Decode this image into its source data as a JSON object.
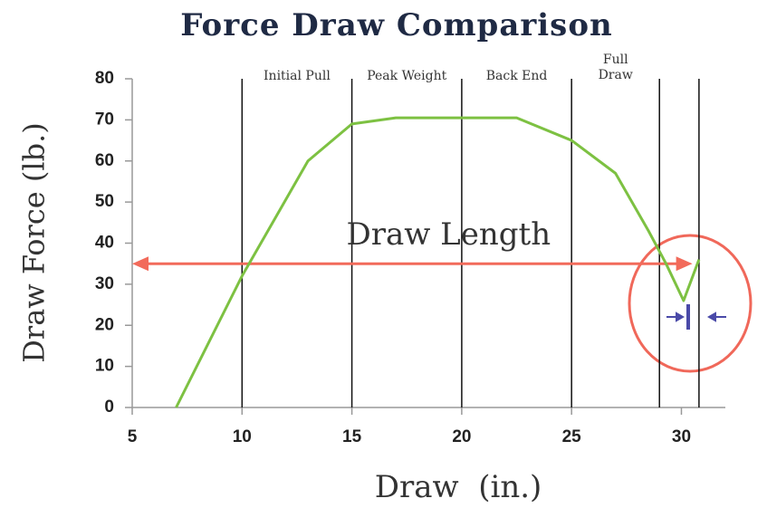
{
  "chart_data": {
    "type": "line",
    "title": "Force Draw Comparison",
    "xlabel": "Draw  (in.)",
    "ylabel": "Draw Force (lb.)",
    "xlim": [
      5,
      32
    ],
    "ylim": [
      0,
      80
    ],
    "xticks": [
      5,
      10,
      15,
      20,
      25,
      30
    ],
    "yticks": [
      0,
      10,
      20,
      30,
      40,
      50,
      60,
      70,
      80
    ],
    "grid": false,
    "series": [
      {
        "color": "#7dc142",
        "x": [
          7,
          10,
          13,
          15,
          17,
          22.5,
          25,
          27,
          28.5,
          29.3,
          30.1,
          30.8
        ],
        "values": [
          0,
          32,
          60,
          69,
          70.5,
          70.5,
          65,
          57,
          43,
          35,
          26,
          36
        ]
      }
    ],
    "vlines": [
      10,
      15,
      20,
      25,
      29,
      30.8
    ],
    "section_labels": [
      [
        "Initial Pull"
      ],
      [
        "Peak Weight"
      ],
      [
        "Back End"
      ],
      [
        "Full",
        "Draw"
      ]
    ],
    "annotation": {
      "text": "Draw Length",
      "y": 35,
      "x": [
        5,
        30.5
      ],
      "color": "#f26b5b"
    }
  }
}
